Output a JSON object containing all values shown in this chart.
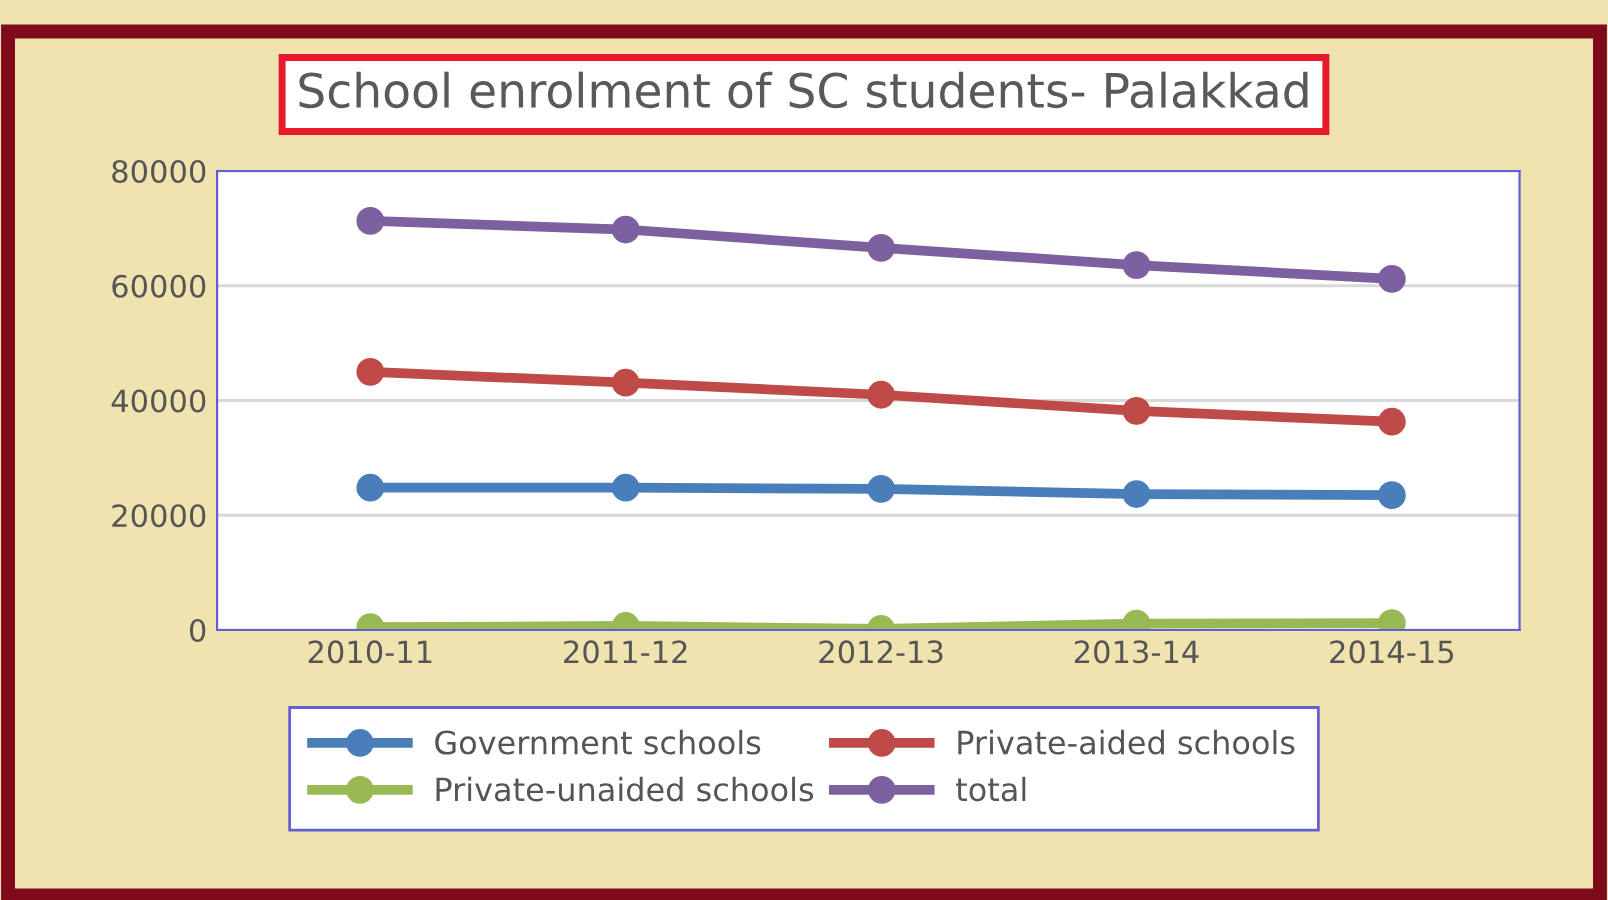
{
  "chart_data": {
    "type": "line",
    "title": "School enrolment of SC students- Palakkad",
    "categories": [
      "2010-11",
      "2011-12",
      "2012-13",
      "2013-14",
      "2014-15"
    ],
    "series": [
      {
        "name": "Government schools",
        "color": "#4a7ebb",
        "values": [
          24800,
          24800,
          24600,
          23700,
          23500
        ]
      },
      {
        "name": "Private-aided schools",
        "color": "#be4b48",
        "values": [
          45000,
          43100,
          41000,
          38200,
          36300
        ]
      },
      {
        "name": "Private-unaided schools",
        "color": "#98b954",
        "values": [
          500,
          700,
          200,
          1100,
          1200
        ]
      },
      {
        "name": "total",
        "color": "#7d60a0",
        "values": [
          71300,
          69800,
          66600,
          63600,
          61200
        ]
      }
    ],
    "ylim": [
      0,
      80000
    ],
    "yticks": [
      0,
      20000,
      40000,
      60000,
      80000
    ],
    "grid": "y",
    "legend": "bottom",
    "marker": "circle",
    "line_style": "solid"
  }
}
